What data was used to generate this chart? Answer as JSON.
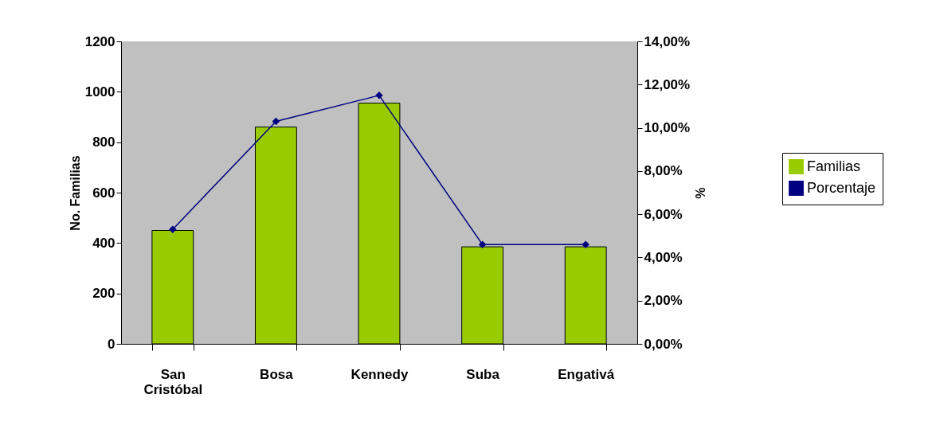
{
  "chart_data": {
    "type": "bar",
    "categories": [
      "San Cristóbal",
      "Bosa",
      "Kennedy",
      "Suba",
      "Engativá"
    ],
    "series": [
      {
        "name": "Familias",
        "type": "bar",
        "color": "#99cc00",
        "values": [
          450,
          860,
          955,
          385,
          385
        ]
      },
      {
        "name": "Porcentaje",
        "type": "line",
        "axis": "y2",
        "color": "#000080",
        "values": [
          5.3,
          10.3,
          11.5,
          4.6,
          4.6
        ]
      }
    ],
    "ylabel": "No. Familias",
    "y2label": "%",
    "ylim": [
      0,
      1200
    ],
    "yticks": [
      0,
      200,
      400,
      600,
      800,
      1000,
      1200
    ],
    "y2lim": [
      0,
      14
    ],
    "y2ticks": [
      {
        "value": 0,
        "label": "0,00%"
      },
      {
        "value": 2,
        "label": "2,00%"
      },
      {
        "value": 4,
        "label": "4,00%"
      },
      {
        "value": 6,
        "label": "6,00%"
      },
      {
        "value": 8,
        "label": "8,00%"
      },
      {
        "value": 10,
        "label": "10,00%"
      },
      {
        "value": 12,
        "label": "12,00%"
      },
      {
        "value": 14,
        "label": "14,00%"
      }
    ],
    "marker": "diamond",
    "legend": "right",
    "grid": false
  }
}
